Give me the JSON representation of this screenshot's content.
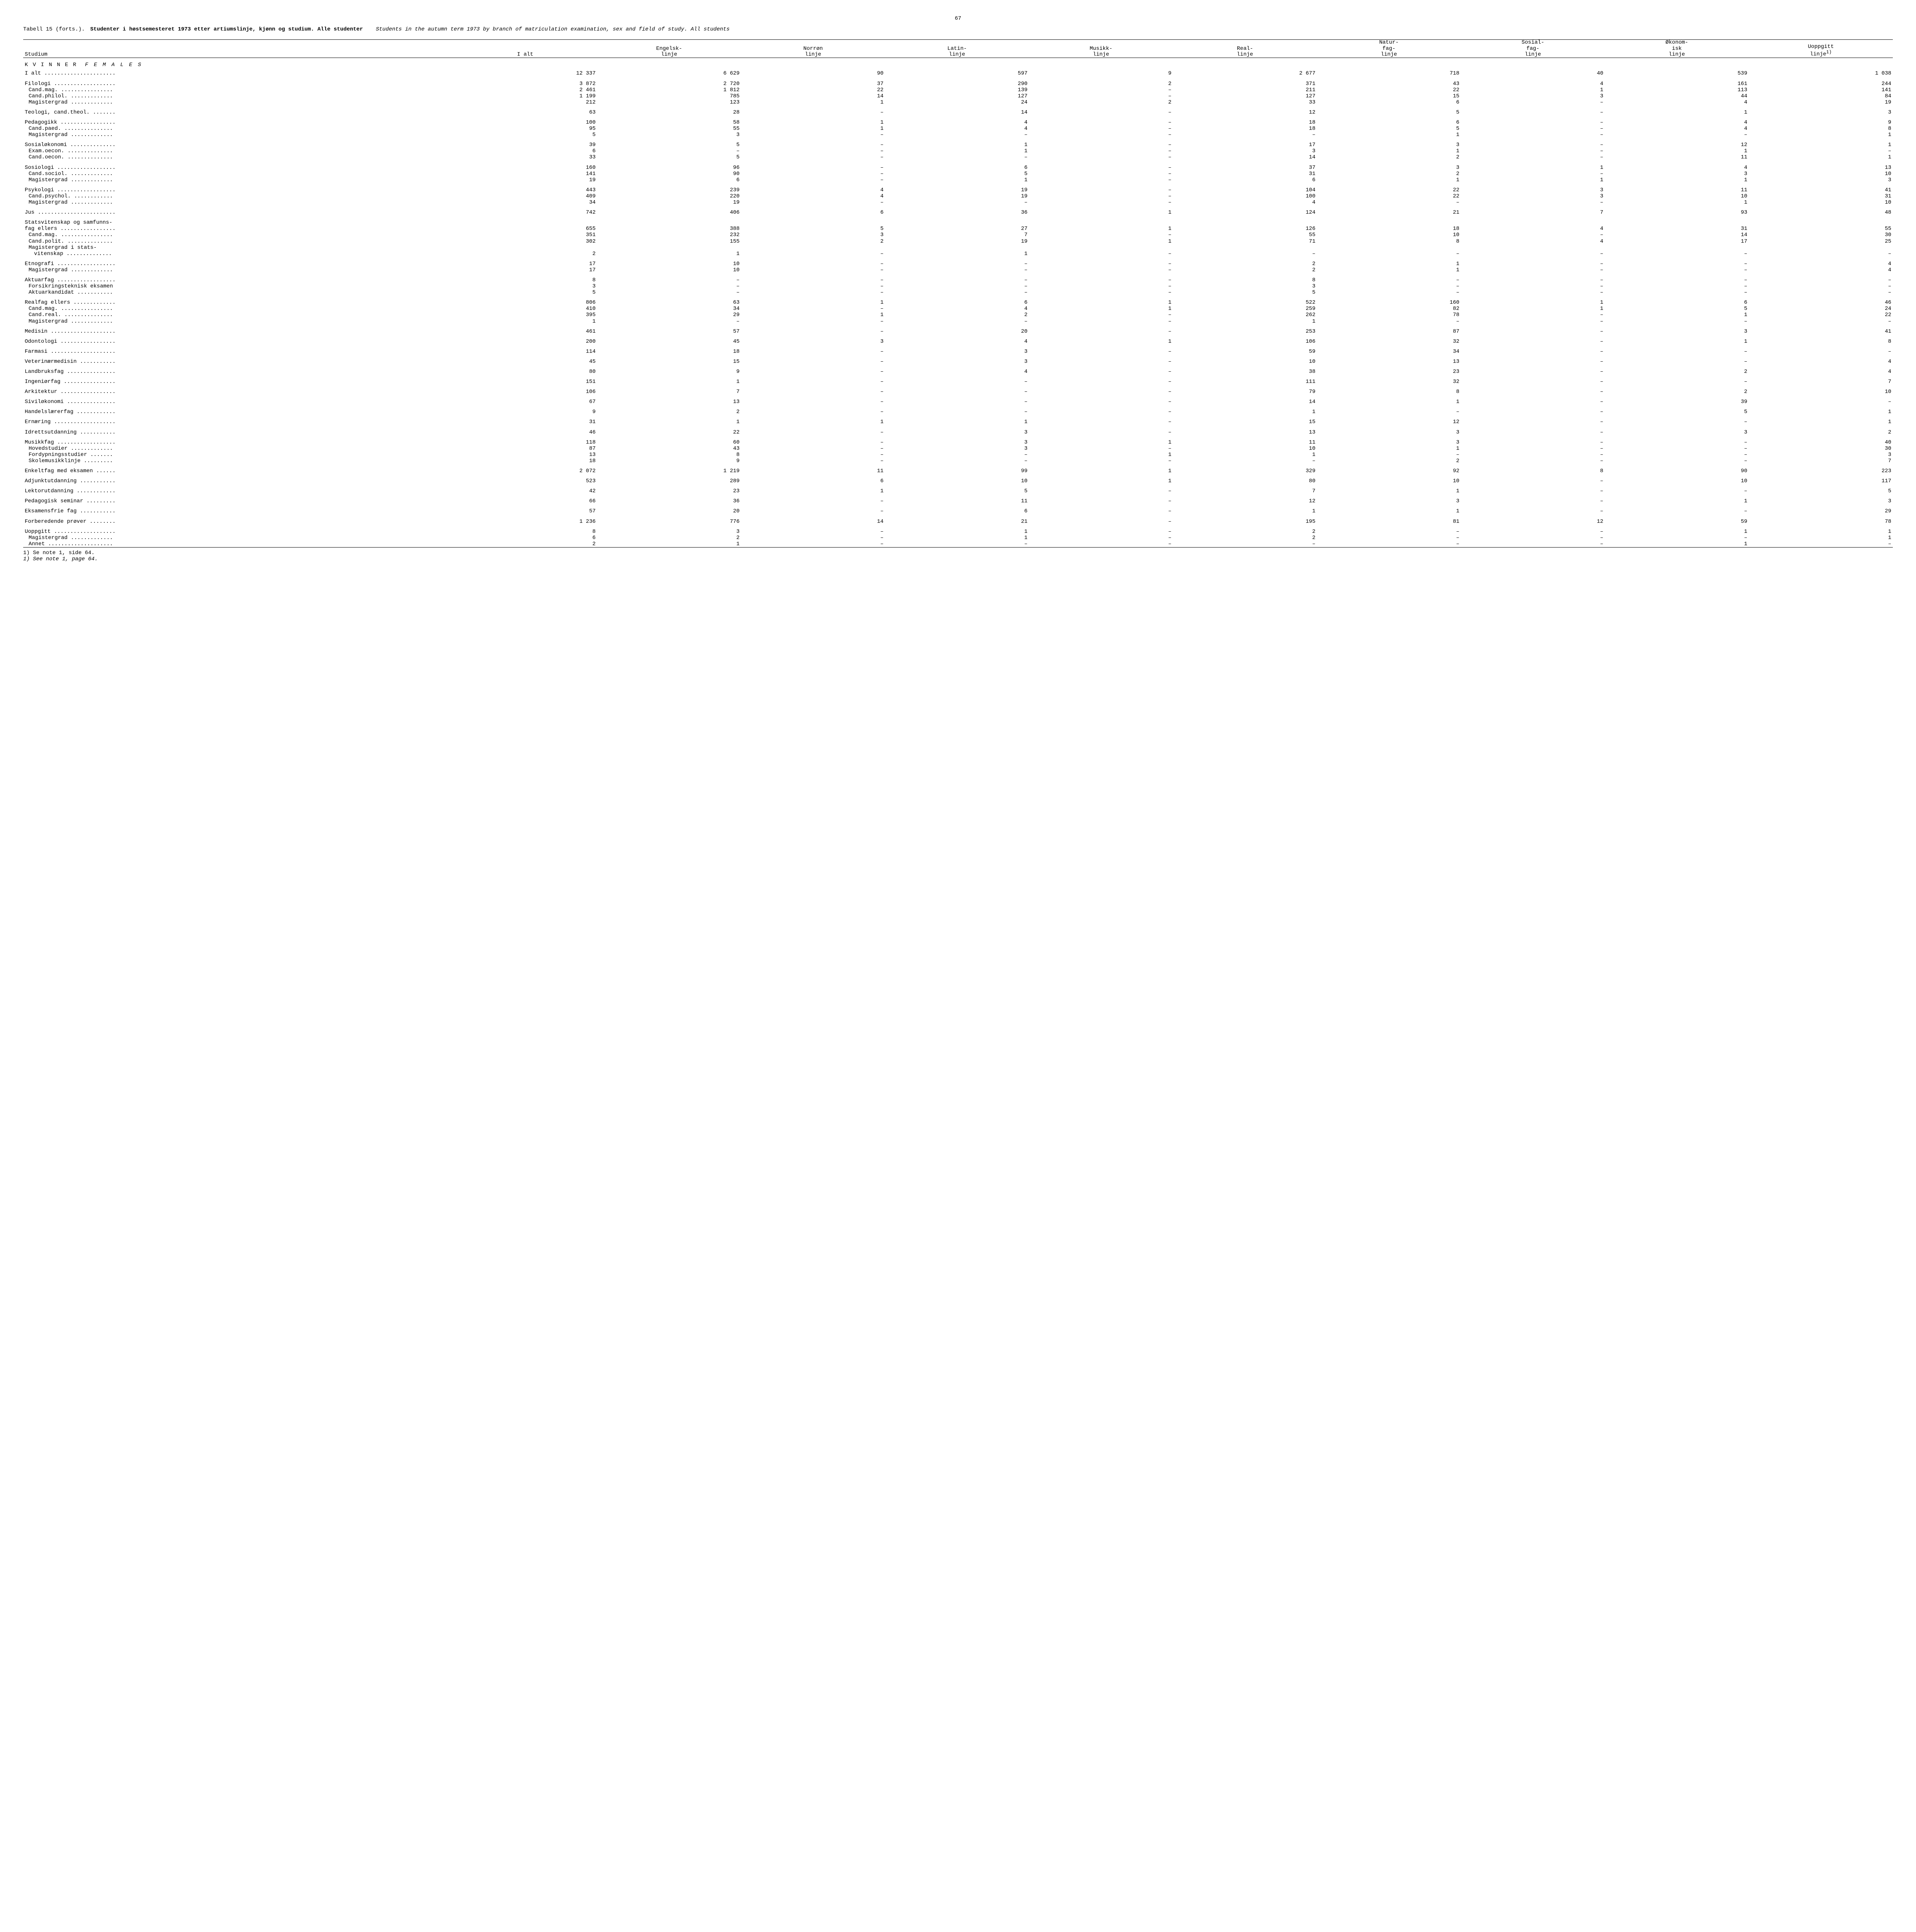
{
  "page_number": "67",
  "caption": {
    "label": "Tabell 15 (forts.).",
    "title_bold": "Studenter i høstsemesteret 1973 etter artiumslinje, kjønn og studium.  Alle studenter",
    "subtitle_italic": "Students in the autumn term 1973 by branch of matriculation examination, sex and field of study.  All students"
  },
  "columns": [
    {
      "l1": "",
      "l2": "Studium"
    },
    {
      "l1": "",
      "l2": "I alt"
    },
    {
      "l1": "Engelsk-",
      "l2": "linje"
    },
    {
      "l1": "Norrøn",
      "l2": "linje"
    },
    {
      "l1": "Latin-",
      "l2": "linje"
    },
    {
      "l1": "Musikk-",
      "l2": "linje"
    },
    {
      "l1": "Real-",
      "l2": "linje"
    },
    {
      "l1": "Natur-",
      "l2": "fag-",
      "l3": "linje"
    },
    {
      "l1": "Sosial-",
      "l2": "fag-",
      "l3": "linje"
    },
    {
      "l1": "Økonom-",
      "l2": "isk",
      "l3": "linje"
    },
    {
      "l1": "Uoppgitt",
      "l2": "linje",
      "sup": "1)"
    }
  ],
  "section_label": {
    "plain": "K V I N N E R",
    "italic": "F E M A L E S"
  },
  "groups": [
    [
      {
        "label": "I alt",
        "indent": 0,
        "v": [
          "12 337",
          "6 629",
          "90",
          "597",
          "9",
          "2 677",
          "718",
          "40",
          "539",
          "1 038"
        ]
      }
    ],
    [
      {
        "label": "Filologi",
        "indent": 0,
        "v": [
          "3 872",
          "2 720",
          "37",
          "290",
          "2",
          "371",
          "43",
          "4",
          "161",
          "244"
        ]
      },
      {
        "label": "Cand.mag.",
        "indent": 1,
        "v": [
          "2 461",
          "1 812",
          "22",
          "139",
          "–",
          "211",
          "22",
          "1",
          "113",
          "141"
        ]
      },
      {
        "label": "Cand.philol.",
        "indent": 1,
        "v": [
          "1 199",
          "785",
          "14",
          "127",
          "–",
          "127",
          "15",
          "3",
          "44",
          "84"
        ]
      },
      {
        "label": "Magistergrad",
        "indent": 1,
        "v": [
          "212",
          "123",
          "1",
          "24",
          "2",
          "33",
          "6",
          "–",
          "4",
          "19"
        ]
      }
    ],
    [
      {
        "label": "Teologi, cand.theol.",
        "indent": 0,
        "v": [
          "63",
          "28",
          "–",
          "14",
          "–",
          "12",
          "5",
          "–",
          "1",
          "3"
        ]
      }
    ],
    [
      {
        "label": "Pedagogikk",
        "indent": 0,
        "v": [
          "100",
          "58",
          "1",
          "4",
          "–",
          "18",
          "6",
          "–",
          "4",
          "9"
        ]
      },
      {
        "label": "Cand.paed.",
        "indent": 1,
        "v": [
          "95",
          "55",
          "1",
          "4",
          "–",
          "18",
          "5",
          "–",
          "4",
          "8"
        ]
      },
      {
        "label": "Magistergrad",
        "indent": 1,
        "v": [
          "5",
          "3",
          "–",
          "–",
          "–",
          "–",
          "1",
          "–",
          "–",
          "1"
        ]
      }
    ],
    [
      {
        "label": "Sosialøkonomi",
        "indent": 0,
        "v": [
          "39",
          "5",
          "–",
          "1",
          "–",
          "17",
          "3",
          "–",
          "12",
          "1"
        ]
      },
      {
        "label": "Exam.oecon.",
        "indent": 1,
        "v": [
          "6",
          "–",
          "–",
          "1",
          "–",
          "3",
          "1",
          "–",
          "1",
          "–"
        ]
      },
      {
        "label": "Cand.oecon.",
        "indent": 1,
        "v": [
          "33",
          "5",
          "–",
          "–",
          "–",
          "14",
          "2",
          "–",
          "11",
          "1"
        ]
      }
    ],
    [
      {
        "label": "Sosiologi",
        "indent": 0,
        "v": [
          "160",
          "96",
          "–",
          "6",
          "–",
          "37",
          "3",
          "1",
          "4",
          "13"
        ]
      },
      {
        "label": "Cand.sociol.",
        "indent": 1,
        "v": [
          "141",
          "90",
          "–",
          "5",
          "–",
          "31",
          "2",
          "–",
          "3",
          "10"
        ]
      },
      {
        "label": "Magistergrad",
        "indent": 1,
        "v": [
          "19",
          "6",
          "–",
          "1",
          "–",
          "6",
          "1",
          "1",
          "1",
          "3"
        ]
      }
    ],
    [
      {
        "label": "Psykologi",
        "indent": 0,
        "v": [
          "443",
          "239",
          "4",
          "19",
          "–",
          "104",
          "22",
          "3",
          "11",
          "41"
        ]
      },
      {
        "label": "Cand.psychol.",
        "indent": 1,
        "v": [
          "409",
          "220",
          "4",
          "19",
          "–",
          "100",
          "22",
          "3",
          "10",
          "31"
        ]
      },
      {
        "label": "Magistergrad",
        "indent": 1,
        "v": [
          "34",
          "19",
          "–",
          "–",
          "–",
          "4",
          "–",
          "–",
          "1",
          "10"
        ]
      }
    ],
    [
      {
        "label": "Jus",
        "indent": 0,
        "v": [
          "742",
          "406",
          "6",
          "36",
          "1",
          "124",
          "21",
          "7",
          "93",
          "48"
        ]
      }
    ],
    [
      {
        "label": "Statsvitenskap og samfunns-",
        "nodots": true,
        "indent": 0,
        "v": [
          "",
          "",
          "",
          "",
          "",
          "",
          "",
          "",
          "",
          ""
        ]
      },
      {
        "label": "fag ellers",
        "indent": 0,
        "v": [
          "655",
          "388",
          "5",
          "27",
          "1",
          "126",
          "18",
          "4",
          "31",
          "55"
        ]
      },
      {
        "label": "Cand.mag.",
        "indent": 1,
        "v": [
          "351",
          "232",
          "3",
          "7",
          "–",
          "55",
          "10",
          "–",
          "14",
          "30"
        ]
      },
      {
        "label": "Cand.polit.",
        "indent": 1,
        "v": [
          "302",
          "155",
          "2",
          "19",
          "1",
          "71",
          "8",
          "4",
          "17",
          "25"
        ]
      },
      {
        "label": "Magistergrad i stats-",
        "nodots": true,
        "indent": 1,
        "v": [
          "",
          "",
          "",
          "",
          "",
          "",
          "",
          "",
          "",
          ""
        ]
      },
      {
        "label": "vitenskap",
        "indent": 2,
        "v": [
          "2",
          "1",
          "–",
          "1",
          "–",
          "–",
          "–",
          "–",
          "–",
          "–"
        ]
      }
    ],
    [
      {
        "label": "Etnografi",
        "indent": 0,
        "v": [
          "17",
          "10",
          "–",
          "–",
          "–",
          "2",
          "1",
          "–",
          "–",
          "4"
        ]
      },
      {
        "label": "Magistergrad",
        "indent": 1,
        "v": [
          "17",
          "10",
          "–",
          "–",
          "–",
          "2",
          "1",
          "–",
          "–",
          "4"
        ]
      }
    ],
    [
      {
        "label": "Aktuarfag",
        "indent": 0,
        "v": [
          "8",
          "–",
          "–",
          "–",
          "–",
          "8",
          "–",
          "–",
          "–",
          "–"
        ]
      },
      {
        "label": "Forsikringsteknisk eksamen",
        "nodots": true,
        "indent": 1,
        "v": [
          "3",
          "–",
          "–",
          "–",
          "–",
          "3",
          "–",
          "–",
          "–",
          "–"
        ]
      },
      {
        "label": "Aktuarkandidat",
        "indent": 1,
        "v": [
          "5",
          "–",
          "–",
          "–",
          "–",
          "5",
          "–",
          "–",
          "–",
          "–"
        ]
      }
    ],
    [
      {
        "label": "Realfag ellers",
        "indent": 0,
        "v": [
          "806",
          "63",
          "1",
          "6",
          "1",
          "522",
          "160",
          "1",
          "6",
          "46"
        ]
      },
      {
        "label": "Cand.mag.",
        "indent": 1,
        "v": [
          "410",
          "34",
          "–",
          "4",
          "1",
          "259",
          "82",
          "1",
          "5",
          "24"
        ]
      },
      {
        "label": "Cand.real.",
        "indent": 1,
        "v": [
          "395",
          "29",
          "1",
          "2",
          "–",
          "262",
          "78",
          "–",
          "1",
          "22"
        ]
      },
      {
        "label": "Magistergrad",
        "indent": 1,
        "v": [
          "1",
          "–",
          "–",
          "–",
          "–",
          "1",
          "–",
          "–",
          "–",
          "–"
        ]
      }
    ],
    [
      {
        "label": "Medisin",
        "indent": 0,
        "v": [
          "461",
          "57",
          "–",
          "20",
          "–",
          "253",
          "87",
          "–",
          "3",
          "41"
        ]
      }
    ],
    [
      {
        "label": "Odontologi",
        "indent": 0,
        "v": [
          "200",
          "45",
          "3",
          "4",
          "1",
          "106",
          "32",
          "–",
          "1",
          "8"
        ]
      }
    ],
    [
      {
        "label": "Farmasi",
        "indent": 0,
        "v": [
          "114",
          "18",
          "–",
          "3",
          "–",
          "59",
          "34",
          "–",
          "–",
          "–"
        ]
      }
    ],
    [
      {
        "label": "Veterinærmedisin",
        "indent": 0,
        "v": [
          "45",
          "15",
          "–",
          "3",
          "–",
          "10",
          "13",
          "–",
          "–",
          "4"
        ]
      }
    ],
    [
      {
        "label": "Landbruksfag",
        "indent": 0,
        "v": [
          "80",
          "9",
          "–",
          "4",
          "–",
          "38",
          "23",
          "–",
          "2",
          "4"
        ]
      }
    ],
    [
      {
        "label": "Ingeniørfag",
        "indent": 0,
        "v": [
          "151",
          "1",
          "–",
          "–",
          "–",
          "111",
          "32",
          "–",
          "–",
          "7"
        ]
      }
    ],
    [
      {
        "label": "Arkitektur",
        "indent": 0,
        "v": [
          "106",
          "7",
          "–",
          "–",
          "–",
          "79",
          "8",
          "–",
          "2",
          "10"
        ]
      }
    ],
    [
      {
        "label": "Siviløkonomi",
        "indent": 0,
        "v": [
          "67",
          "13",
          "–",
          "–",
          "–",
          "14",
          "1",
          "–",
          "39",
          "–"
        ]
      }
    ],
    [
      {
        "label": "Handelslærerfag",
        "indent": 0,
        "v": [
          "9",
          "2",
          "–",
          "–",
          "–",
          "1",
          "–",
          "–",
          "5",
          "1"
        ]
      }
    ],
    [
      {
        "label": "Ernæring",
        "indent": 0,
        "v": [
          "31",
          "1",
          "1",
          "1",
          "–",
          "15",
          "12",
          "–",
          "–",
          "1"
        ]
      }
    ],
    [
      {
        "label": "Idrettsutdanning",
        "indent": 0,
        "v": [
          "46",
          "22",
          "–",
          "3",
          "–",
          "13",
          "3",
          "–",
          "3",
          "2"
        ]
      }
    ],
    [
      {
        "label": "Musikkfag",
        "indent": 0,
        "v": [
          "118",
          "60",
          "–",
          "3",
          "1",
          "11",
          "3",
          "–",
          "–",
          "40"
        ]
      },
      {
        "label": "Hovedstudier",
        "indent": 1,
        "v": [
          "87",
          "43",
          "–",
          "3",
          "–",
          "10",
          "1",
          "–",
          "–",
          "30"
        ]
      },
      {
        "label": "Fordypningsstudier",
        "indent": 1,
        "v": [
          "13",
          "8",
          "–",
          "–",
          "1",
          "1",
          "–",
          "–",
          "–",
          "3"
        ]
      },
      {
        "label": "Skolemusikklinje",
        "indent": 1,
        "v": [
          "18",
          "9",
          "–",
          "–",
          "–",
          "–",
          "2",
          "–",
          "–",
          "7"
        ]
      }
    ],
    [
      {
        "label": "Enkeltfag med eksamen",
        "indent": 0,
        "v": [
          "2 072",
          "1 219",
          "11",
          "99",
          "1",
          "329",
          "92",
          "8",
          "90",
          "223"
        ]
      }
    ],
    [
      {
        "label": "Adjunktutdanning",
        "indent": 0,
        "v": [
          "523",
          "289",
          "6",
          "10",
          "1",
          "80",
          "10",
          "–",
          "10",
          "117"
        ]
      }
    ],
    [
      {
        "label": "Lektorutdanning",
        "indent": 0,
        "v": [
          "42",
          "23",
          "1",
          "5",
          "–",
          "7",
          "1",
          "–",
          "–",
          "5"
        ]
      }
    ],
    [
      {
        "label": "Pedagogisk seminar",
        "indent": 0,
        "v": [
          "66",
          "36",
          "–",
          "11",
          "–",
          "12",
          "3",
          "–",
          "1",
          "3"
        ]
      }
    ],
    [
      {
        "label": "Eksamensfrie fag",
        "indent": 0,
        "v": [
          "57",
          "20",
          "–",
          "6",
          "–",
          "1",
          "1",
          "–",
          "–",
          "29"
        ]
      }
    ],
    [
      {
        "label": "Forberedende prøver",
        "indent": 0,
        "v": [
          "1 236",
          "776",
          "14",
          "21",
          "–",
          "195",
          "81",
          "12",
          "59",
          "78"
        ]
      }
    ],
    [
      {
        "label": "Uoppgitt",
        "indent": 0,
        "v": [
          "8",
          "3",
          "–",
          "1",
          "–",
          "2",
          "–",
          "–",
          "1",
          "1"
        ]
      },
      {
        "label": "Magistergrad",
        "indent": 1,
        "v": [
          "6",
          "2",
          "–",
          "1",
          "–",
          "2",
          "–",
          "–",
          "–",
          "1"
        ]
      },
      {
        "label": "Annet",
        "indent": 1,
        "v": [
          "2",
          "1",
          "–",
          "–",
          "–",
          "–",
          "–",
          "–",
          "1",
          "–"
        ]
      }
    ]
  ],
  "footnotes": [
    {
      "text": "1) Se note 1, side 64.",
      "italic": false
    },
    {
      "text": "1) See note 1, page 64.",
      "italic": true
    }
  ],
  "style": {
    "font_family": "Courier New",
    "text_color": "#000000",
    "background": "#ffffff",
    "dash": "–"
  }
}
